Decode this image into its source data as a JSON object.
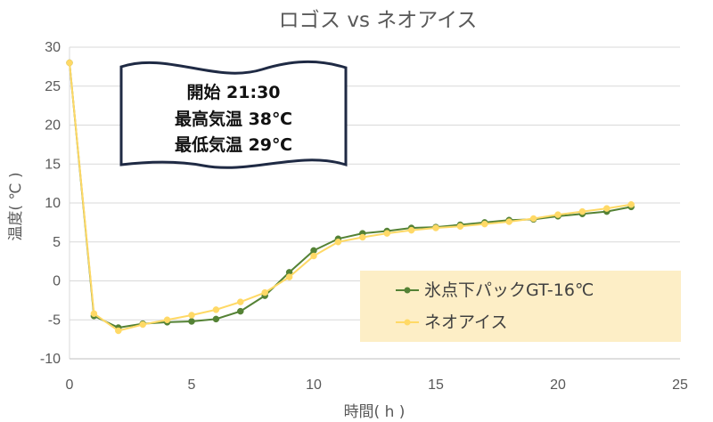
{
  "chart_data": {
    "type": "line",
    "title": "ロゴス vs ネオアイス",
    "xlabel": "時間( h )",
    "ylabel": "温度( ℃ )",
    "xlim": [
      0,
      25
    ],
    "ylim": [
      -10,
      30
    ],
    "x_ticks": [
      0,
      5,
      10,
      15,
      20,
      25
    ],
    "y_ticks": [
      -10,
      -5,
      0,
      5,
      10,
      15,
      20,
      25,
      30
    ],
    "grid": "horizontal",
    "legend_position": "bottom-right",
    "series": [
      {
        "name": "氷点下パックGT-16℃",
        "color": "#548235",
        "x": [
          0,
          1,
          2,
          3,
          4,
          5,
          6,
          7,
          8,
          9,
          10,
          11,
          12,
          13,
          14,
          15,
          16,
          17,
          18,
          19,
          20,
          21,
          22,
          23
        ],
        "values": [
          28,
          -4.5,
          -6,
          -5.5,
          -5.3,
          -5.2,
          -4.9,
          -3.9,
          -1.9,
          1.1,
          3.9,
          5.4,
          6.1,
          6.4,
          6.8,
          6.9,
          7.2,
          7.5,
          7.8,
          7.9,
          8.3,
          8.6,
          8.9,
          9.5
        ]
      },
      {
        "name": "ネオアイス",
        "color": "#FFD966",
        "x": [
          0,
          1,
          2,
          3,
          4,
          5,
          6,
          7,
          8,
          9,
          10,
          11,
          12,
          13,
          14,
          15,
          16,
          17,
          18,
          19,
          20,
          21,
          22,
          23
        ],
        "values": [
          28,
          -4.2,
          -6.4,
          -5.6,
          -5,
          -4.4,
          -3.7,
          -2.7,
          -1.5,
          0.5,
          3.2,
          5,
          5.6,
          6.1,
          6.5,
          6.8,
          7,
          7.3,
          7.6,
          8,
          8.5,
          8.9,
          9.3,
          9.8
        ]
      }
    ],
    "annotation": {
      "lines": [
        "開始 21:30",
        "最高気温 38℃",
        "最低気温 29℃"
      ]
    }
  }
}
